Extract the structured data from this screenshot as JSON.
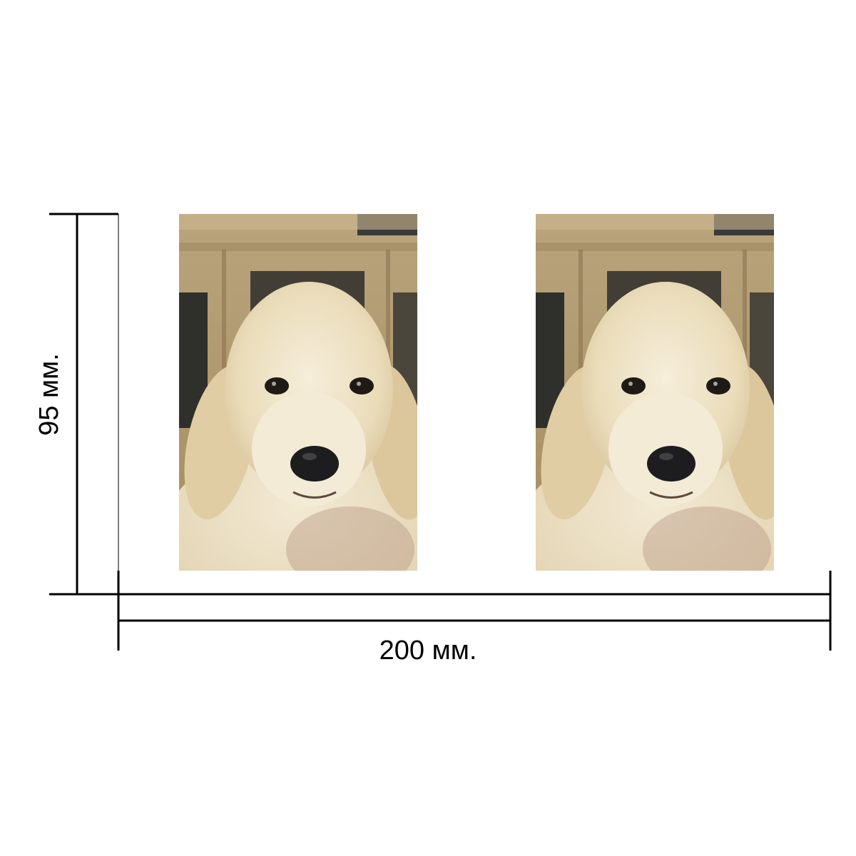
{
  "dimensions": {
    "width_label": "200 мм.",
    "height_label": "95 мм."
  },
  "photos": [
    {
      "subject": "golden-retriever-puppy"
    },
    {
      "subject": "golden-retriever-puppy"
    }
  ],
  "colors": {
    "line": "#000000",
    "background_wall": "#b8a177",
    "fur": "#efe4c9",
    "nose": "#1d1d1f"
  }
}
